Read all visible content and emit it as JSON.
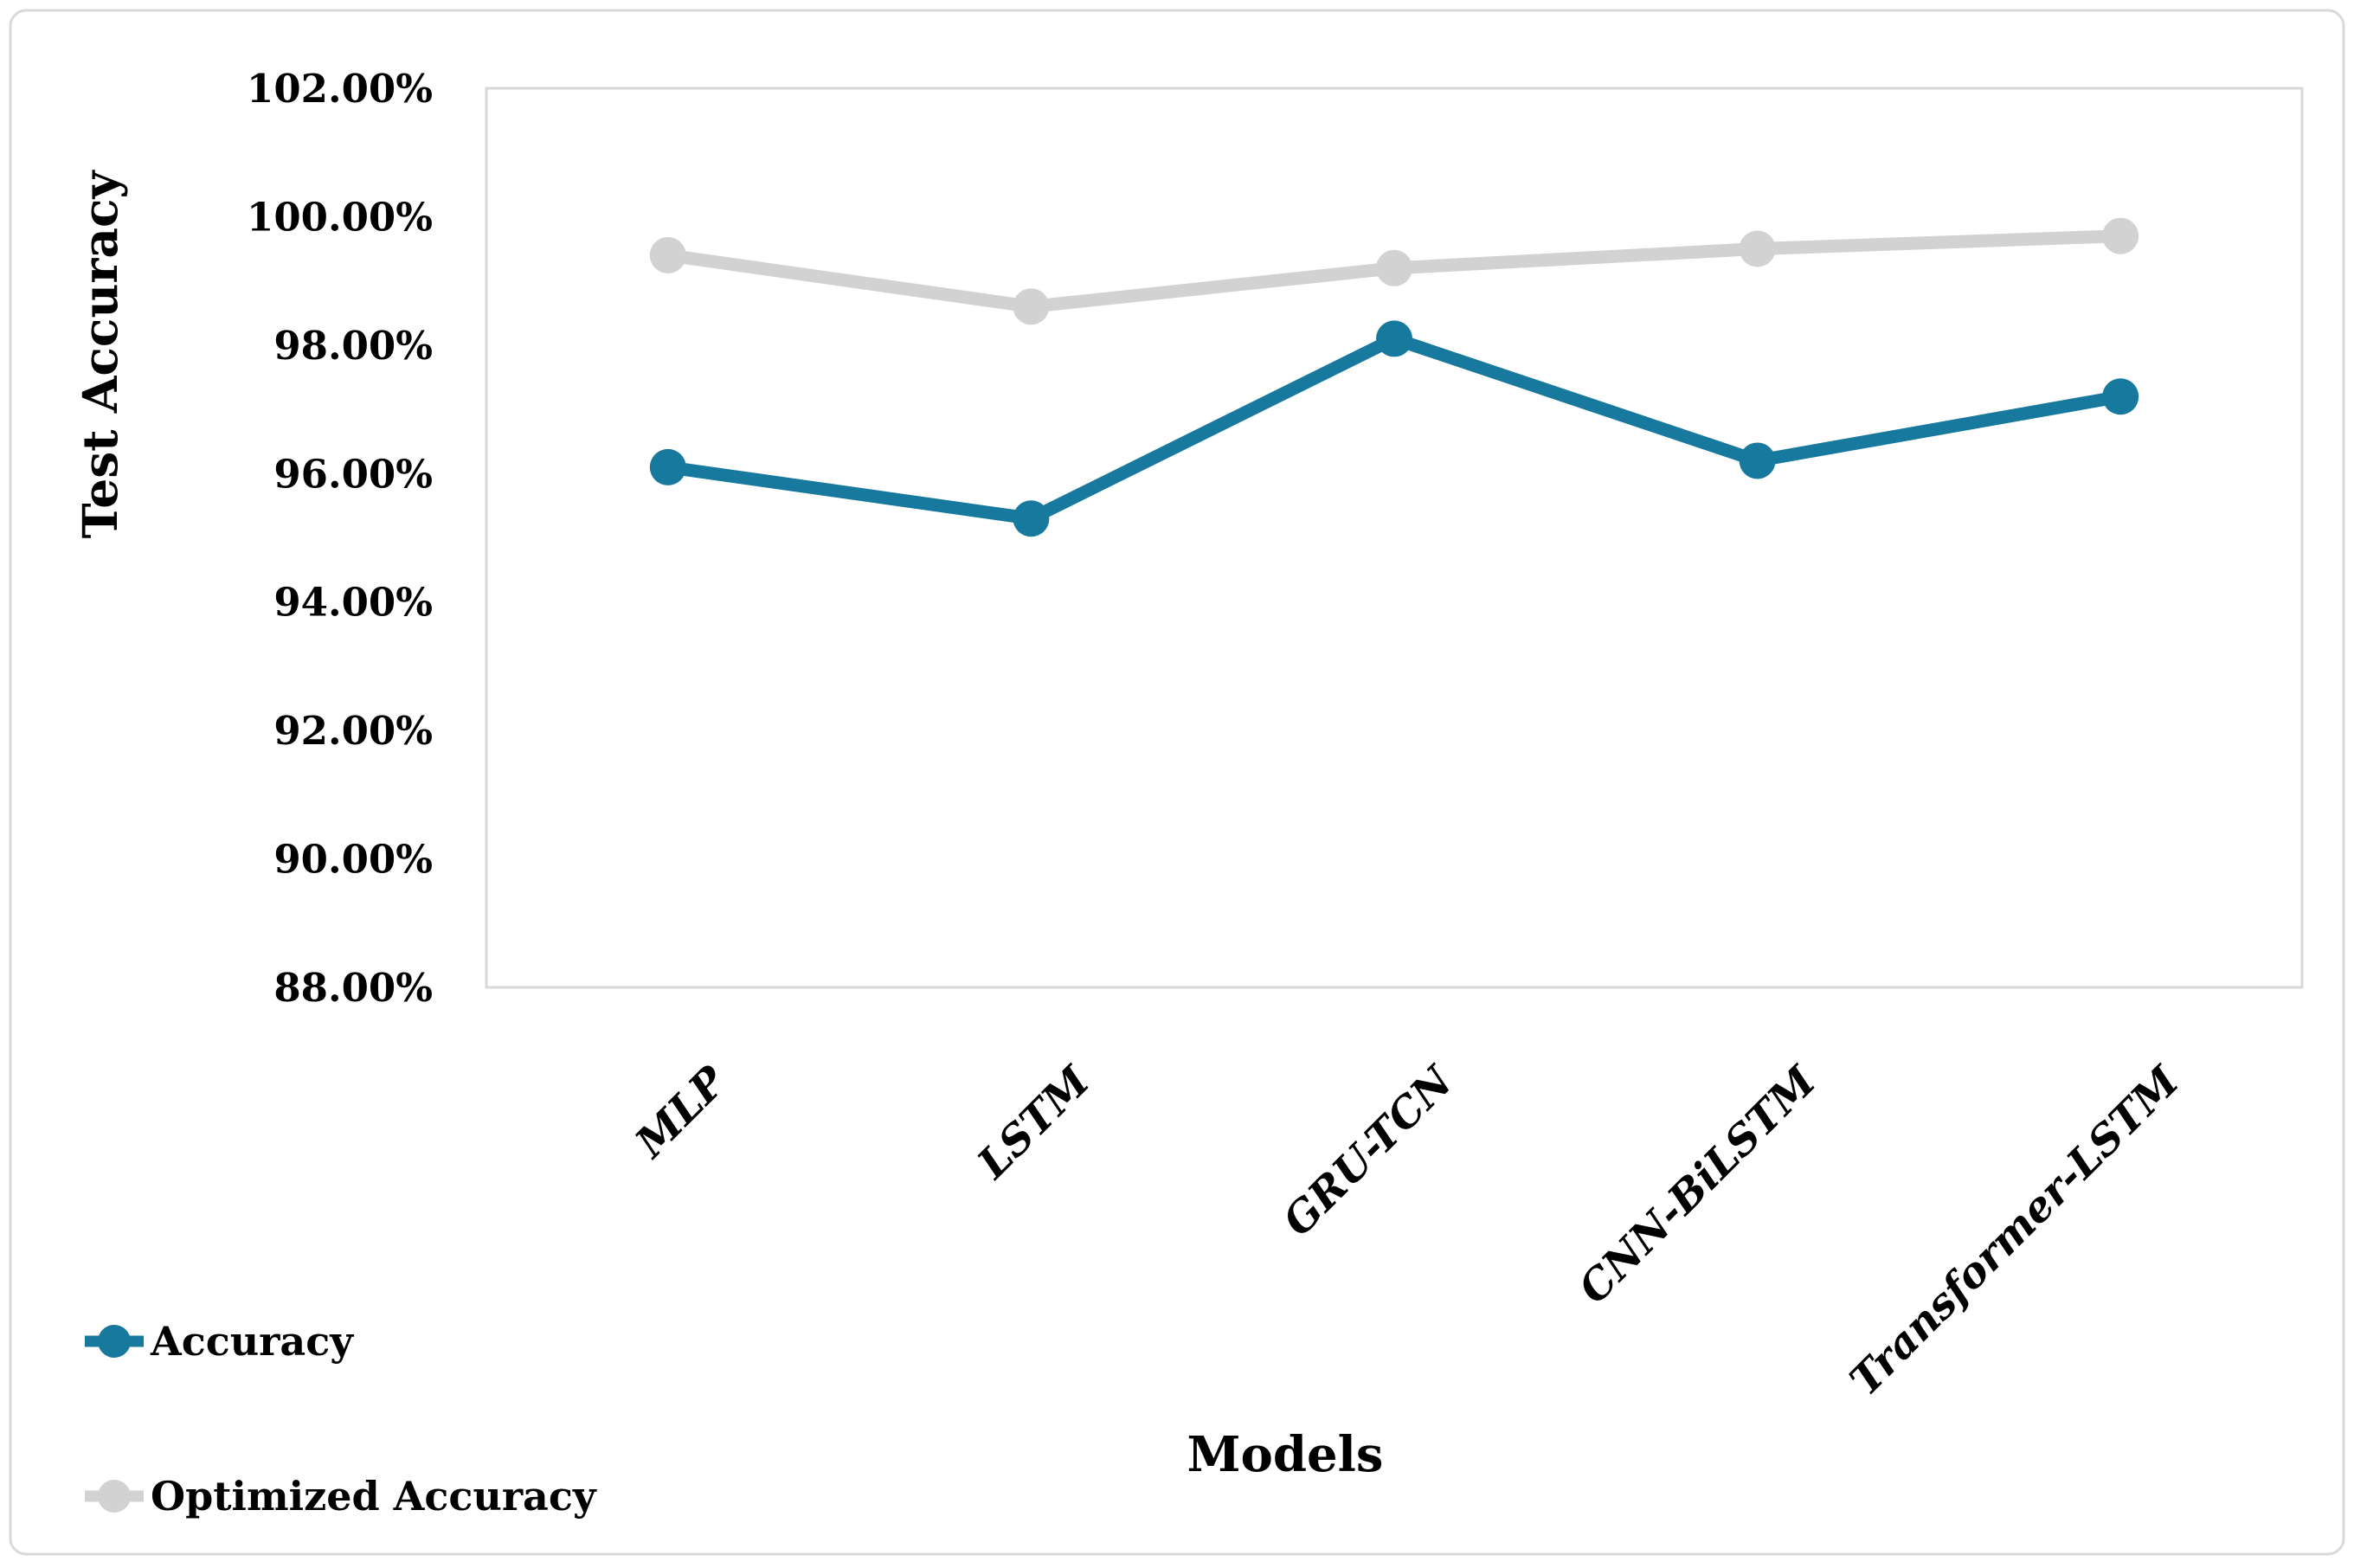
{
  "figure": {
    "background": "#ffffff",
    "border_color": "#d9d9d9"
  },
  "chart_data": {
    "type": "line",
    "title": "",
    "xlabel": "Models",
    "ylabel": "Test Accuracy",
    "categories": [
      "MLP",
      "LSTM",
      "GRU-TCN",
      "CNN-BiLSTM",
      "Transformer-LSTM"
    ],
    "series": [
      {
        "name": "Accuracy",
        "color": "#17799e",
        "values": [
          96.1,
          95.3,
          98.1,
          96.2,
          97.2
        ]
      },
      {
        "name": "Optimized Accuracy",
        "color": "#d2d2d2",
        "values": [
          99.4,
          98.6,
          99.2,
          99.5,
          99.7
        ]
      }
    ],
    "y_ticks": [
      "102.00%",
      "100.00%",
      "98.00%",
      "96.00%",
      "94.00%",
      "92.00%",
      "90.00%",
      "88.00%"
    ],
    "y_tick_values": [
      102,
      100,
      98,
      96,
      94,
      92,
      90,
      88
    ],
    "ylim": [
      88,
      102
    ],
    "grid": false,
    "legend_position": "bottom-left",
    "value_format": "percent",
    "plot_border_color": "#d9d9d9",
    "text_color": "#000000"
  }
}
